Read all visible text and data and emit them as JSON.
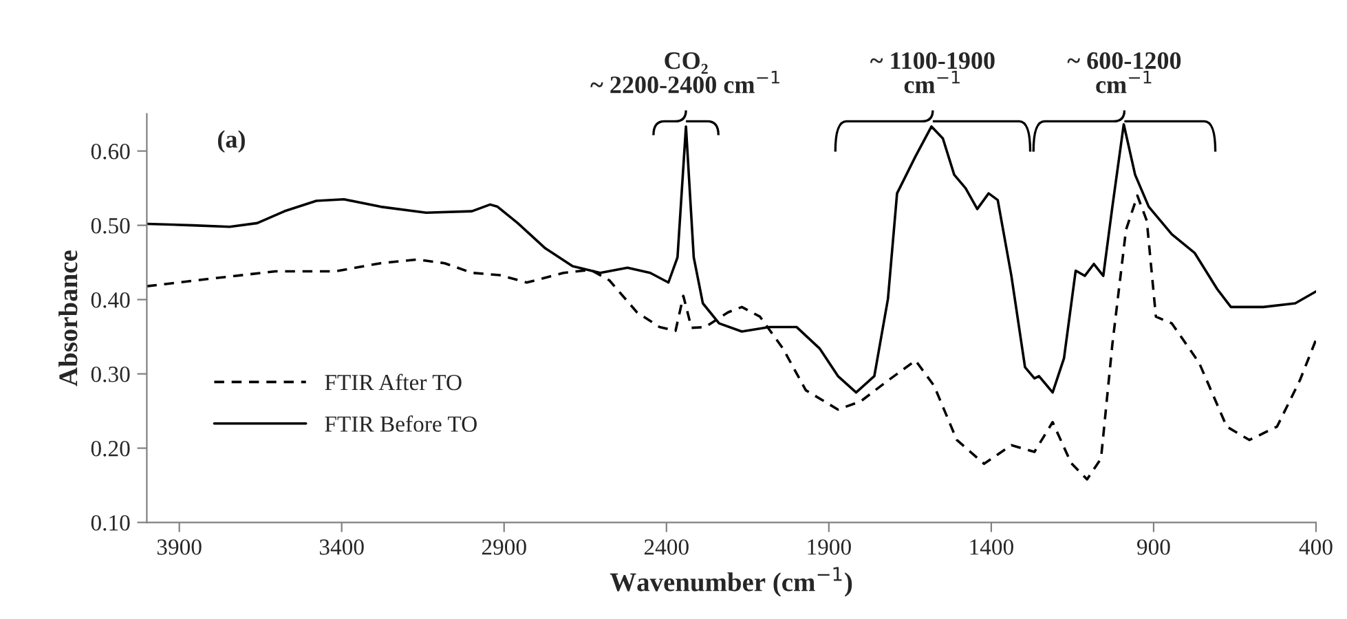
{
  "chart_data": {
    "type": "line",
    "xlabel": "Wavenumber (cm$^{−1}$)",
    "ylabel": "Absorbance",
    "xlim": [
      4000,
      400
    ],
    "xticks": [
      3900,
      3400,
      2900,
      2400,
      1900,
      1400,
      900,
      400
    ],
    "ylim": [
      0.1,
      0.65
    ],
    "yticks": [
      {
        "value": 0.1,
        "label": "0.10"
      },
      {
        "value": 0.2,
        "label": "0.20"
      },
      {
        "value": 0.3,
        "label": "0.30"
      },
      {
        "value": 0.4,
        "label": "0.40"
      },
      {
        "value": 0.5,
        "label": "0.50"
      },
      {
        "value": 0.6,
        "label": "0.60"
      }
    ],
    "grid": false,
    "legend": "bottom left",
    "annotations": [
      "(a)",
      {
        "text": "CO₂\n~ 2200-2400 cm$^{−1}$",
        "x": 2340,
        "y": 0.64
      },
      {
        "text": "~ 1100-1900\ncm$^{−1}$",
        "x": 1580,
        "y": 0.64
      },
      {
        "text": "~ 600-1200\ncm$^{−1}$",
        "x": 990,
        "y": 0.64
      }
    ],
    "series": [
      {
        "name": "FTIR After TO",
        "color": "#000000",
        "line_style": "dashed",
        "x": [
          4000,
          3787,
          3604,
          3421,
          3280,
          3168,
          3083,
          2999,
          2914,
          2830,
          2717,
          2633,
          2576,
          2491,
          2421,
          2372,
          2348,
          2323,
          2281,
          2210,
          2168,
          2112,
          2041,
          1971,
          1872,
          1802,
          1718,
          1633,
          1576,
          1506,
          1422,
          1338,
          1267,
          1211,
          1154,
          1105,
          1062,
          1027,
          985,
          950,
          921,
          893,
          844,
          760,
          675,
          605,
          520,
          450,
          400
        ],
        "values": [
          0.418,
          0.429,
          0.438,
          0.438,
          0.449,
          0.454,
          0.449,
          0.436,
          0.433,
          0.423,
          0.436,
          0.44,
          0.426,
          0.383,
          0.363,
          0.358,
          0.405,
          0.362,
          0.363,
          0.383,
          0.39,
          0.377,
          0.334,
          0.278,
          0.252,
          0.263,
          0.291,
          0.318,
          0.284,
          0.211,
          0.179,
          0.204,
          0.195,
          0.235,
          0.18,
          0.158,
          0.186,
          0.34,
          0.494,
          0.54,
          0.506,
          0.377,
          0.368,
          0.315,
          0.229,
          0.211,
          0.229,
          0.291,
          0.346
        ]
      },
      {
        "name": "FTIR Before TO",
        "color": "#000000",
        "line_style": "solid",
        "x": [
          4000,
          3858,
          3745,
          3660,
          3576,
          3478,
          3393,
          3280,
          3140,
          2999,
          2943,
          2920,
          2858,
          2773,
          2689,
          2604,
          2520,
          2450,
          2394,
          2366,
          2340,
          2316,
          2288,
          2238,
          2168,
          2083,
          1999,
          1928,
          1872,
          1816,
          1760,
          1718,
          1690,
          1633,
          1584,
          1549,
          1514,
          1479,
          1443,
          1408,
          1380,
          1338,
          1296,
          1267,
          1253,
          1211,
          1176,
          1140,
          1112,
          1084,
          1055,
          1027,
          992,
          957,
          915,
          844,
          774,
          704,
          662,
          562,
          464,
          400
        ],
        "values": [
          0.502,
          0.5,
          0.498,
          0.503,
          0.519,
          0.533,
          0.535,
          0.525,
          0.517,
          0.519,
          0.528,
          0.525,
          0.503,
          0.469,
          0.445,
          0.436,
          0.443,
          0.436,
          0.423,
          0.457,
          0.633,
          0.457,
          0.395,
          0.368,
          0.357,
          0.363,
          0.363,
          0.334,
          0.297,
          0.275,
          0.297,
          0.401,
          0.543,
          0.593,
          0.633,
          0.617,
          0.568,
          0.55,
          0.522,
          0.543,
          0.534,
          0.432,
          0.309,
          0.294,
          0.297,
          0.275,
          0.321,
          0.439,
          0.432,
          0.448,
          0.432,
          0.525,
          0.636,
          0.568,
          0.525,
          0.488,
          0.463,
          0.414,
          0.39,
          0.39,
          0.395,
          0.411
        ]
      }
    ]
  }
}
